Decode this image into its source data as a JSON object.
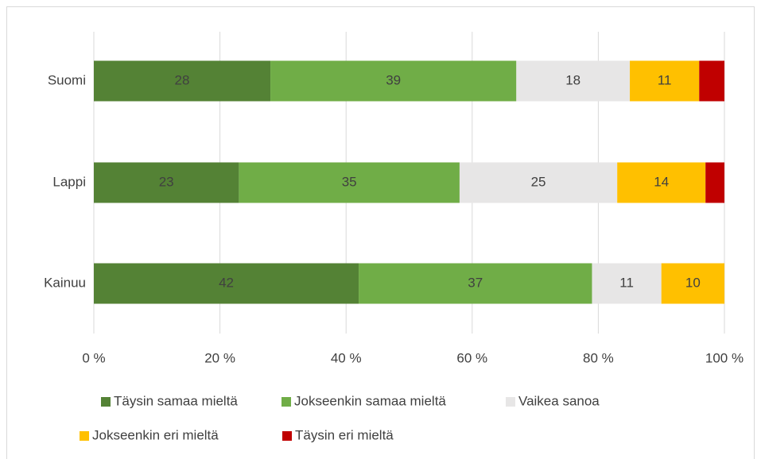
{
  "chart_data": {
    "type": "stacked_barh",
    "categories": [
      "Suomi",
      "Lappi",
      "Kainuu"
    ],
    "series": [
      {
        "name": "Täysin samaa mieltä",
        "color": "#548235",
        "values": [
          28,
          23,
          42
        ]
      },
      {
        "name": "Jokseenkin samaa mieltä",
        "color": "#70ad47",
        "values": [
          39,
          35,
          37
        ]
      },
      {
        "name": "Vaikea sanoa",
        "color": "#e7e6e6",
        "values": [
          18,
          25,
          11
        ]
      },
      {
        "name": "Jokseenkin eri mieltä",
        "color": "#ffc000",
        "values": [
          11,
          14,
          10
        ]
      },
      {
        "name": "Täysin eri mieltä",
        "color": "#c00000",
        "values": [
          4,
          3,
          0
        ],
        "labels": false
      }
    ],
    "xlim": [
      0,
      100
    ],
    "xticks": [
      {
        "value": 0,
        "label": "0 %"
      },
      {
        "value": 20,
        "label": "20 %"
      },
      {
        "value": 40,
        "label": "40 %"
      },
      {
        "value": 60,
        "label": "60 %"
      },
      {
        "value": 80,
        "label": "80 %"
      },
      {
        "value": 100,
        "label": "100 %"
      }
    ],
    "grid": true,
    "legend": "bottom"
  }
}
